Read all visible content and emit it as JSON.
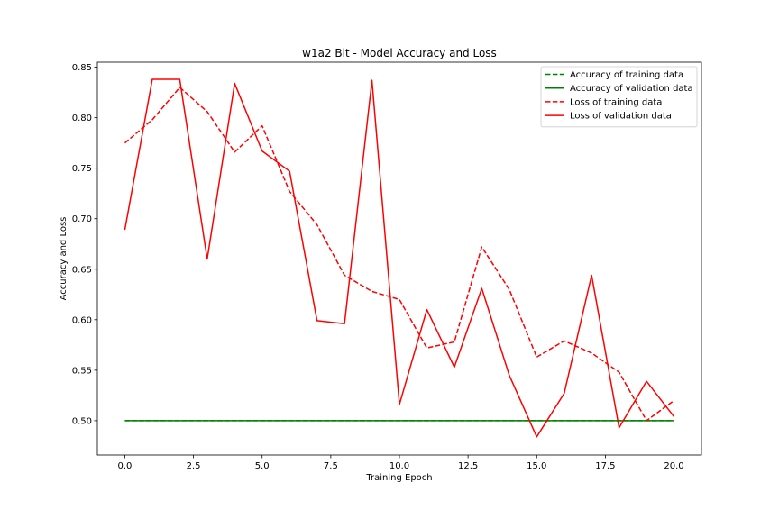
{
  "chart_data": {
    "type": "line",
    "title": "w1a2 Bit - Model Accuracy and Loss",
    "xlabel": "Training Epoch",
    "ylabel": "Accuracy and Loss",
    "xlim": [
      -1.0,
      21.0
    ],
    "ylim": [
      0.466,
      0.855
    ],
    "xticks": [
      "0.0",
      "2.5",
      "5.0",
      "7.5",
      "10.0",
      "12.5",
      "15.0",
      "17.5",
      "20.0"
    ],
    "yticks": [
      "0.50",
      "0.55",
      "0.60",
      "0.65",
      "0.70",
      "0.75",
      "0.80",
      "0.85"
    ],
    "grid": false,
    "legend_position": "top-right",
    "x": [
      0,
      1,
      2,
      3,
      4,
      5,
      6,
      7,
      8,
      9,
      10,
      11,
      12,
      13,
      14,
      15,
      16,
      17,
      18,
      19,
      20
    ],
    "series": [
      {
        "name": "Accuracy of training data",
        "color": "#008000",
        "style": "dashed",
        "values": [
          0.5,
          0.5,
          0.5,
          0.5,
          0.5,
          0.5,
          0.5,
          0.5,
          0.5,
          0.5,
          0.5,
          0.5,
          0.5,
          0.5,
          0.5,
          0.5,
          0.5,
          0.5,
          0.5,
          0.5,
          0.5
        ]
      },
      {
        "name": "Accuracy of validation data",
        "color": "#008000",
        "style": "solid",
        "values": [
          0.5,
          0.5,
          0.5,
          0.5,
          0.5,
          0.5,
          0.5,
          0.5,
          0.5,
          0.5,
          0.5,
          0.5,
          0.5,
          0.5,
          0.5,
          0.5,
          0.5,
          0.5,
          0.5,
          0.5,
          0.5
        ]
      },
      {
        "name": "Loss of training data",
        "color": "#ff0000",
        "style": "dashed",
        "values": [
          0.775,
          0.798,
          0.83,
          0.806,
          0.766,
          0.792,
          0.727,
          0.694,
          0.644,
          0.628,
          0.62,
          0.572,
          0.578,
          0.672,
          0.63,
          0.563,
          0.579,
          0.567,
          0.548,
          0.5,
          0.52
        ]
      },
      {
        "name": "Loss of validation data",
        "color": "#ff0000",
        "style": "solid",
        "values": [
          0.689,
          0.838,
          0.838,
          0.66,
          0.834,
          0.767,
          0.747,
          0.599,
          0.596,
          0.837,
          0.516,
          0.61,
          0.553,
          0.631,
          0.545,
          0.484,
          0.527,
          0.644,
          0.493,
          0.539,
          0.504
        ]
      }
    ]
  }
}
